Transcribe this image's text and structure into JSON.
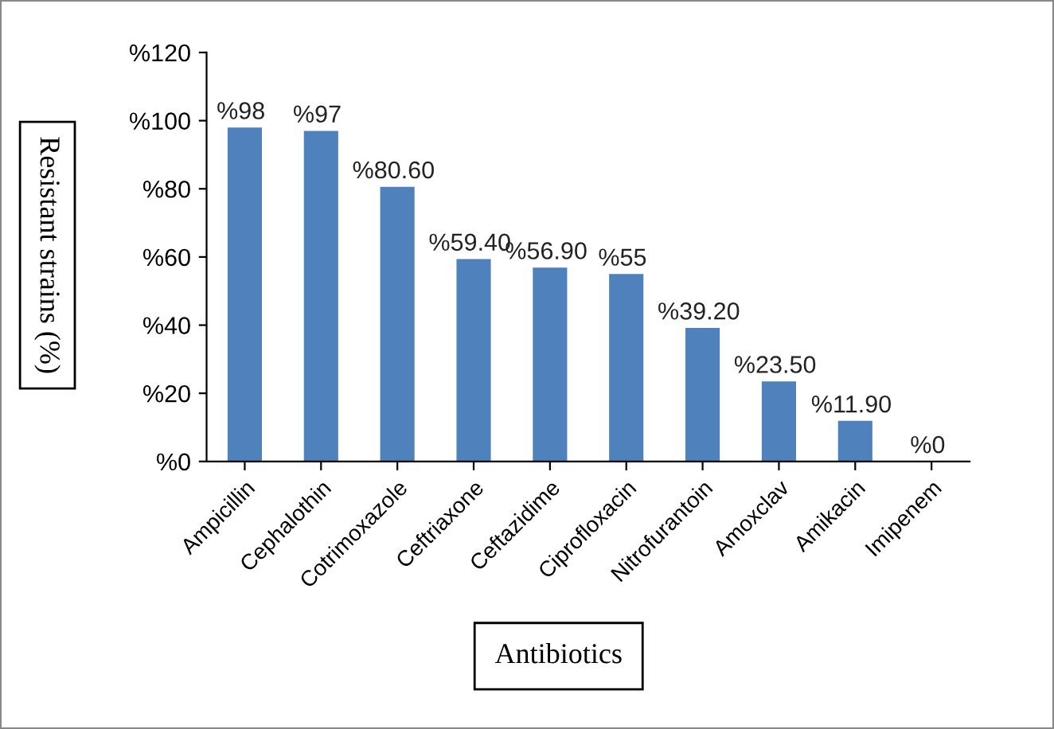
{
  "chart_data": {
    "type": "bar",
    "xlabel": "Antibiotics",
    "ylabel": "Resistant strains (%)",
    "categories": [
      "Ampicillin",
      "Cephalothin",
      "Cotrimoxazole",
      "Ceftriaxone",
      "Ceftazidime",
      "Ciprofloxacin",
      "Nitrofurantoin",
      "Amoxclav",
      "Amikacin",
      "Imipenem"
    ],
    "values": [
      98,
      97,
      80.6,
      59.4,
      56.9,
      55,
      39.2,
      23.5,
      11.9,
      0
    ],
    "value_labels": [
      "%98",
      "%97",
      "%80.60",
      "%59.40",
      "%56.90",
      "%55",
      "%39.20",
      "%23.50",
      "%11.90",
      "%0"
    ],
    "color": "#4f81bd",
    "ylim": [
      0,
      120
    ],
    "yticks": [
      {
        "value": 0,
        "label": "%0"
      },
      {
        "value": 20,
        "label": "%20"
      },
      {
        "value": 40,
        "label": "%40"
      },
      {
        "value": 60,
        "label": "%60"
      },
      {
        "value": 80,
        "label": "%80"
      },
      {
        "value": 100,
        "label": "%100"
      },
      {
        "value": 120,
        "label": "%120"
      }
    ],
    "grid": false,
    "legend": false
  }
}
